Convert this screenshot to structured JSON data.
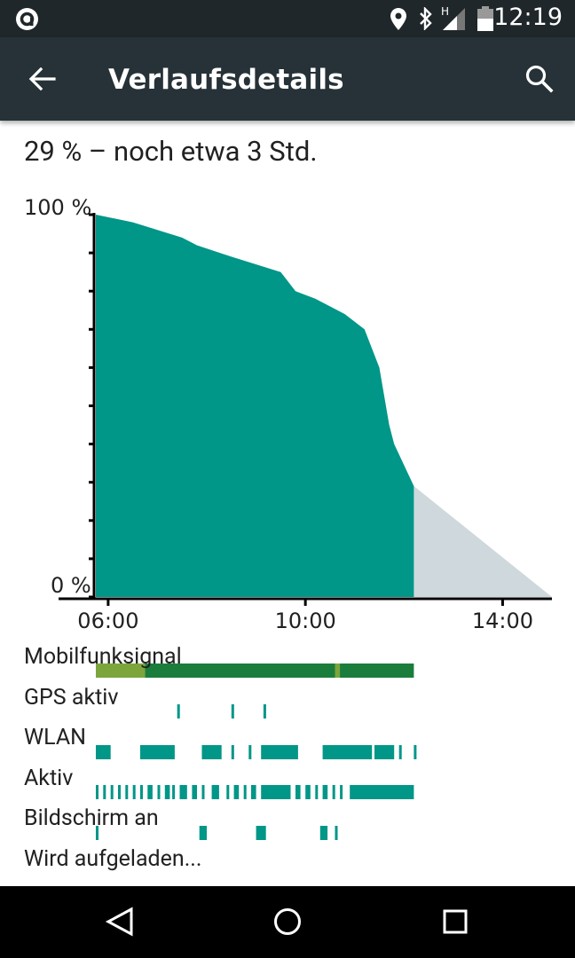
{
  "status_bar": {
    "time": "12:19",
    "icons": [
      "app-notification-icon",
      "location-icon",
      "bluetooth-icon",
      "signal-icon",
      "battery-icon"
    ],
    "network_type": "H"
  },
  "app_bar": {
    "title": "Verlaufsdetails",
    "back_icon": "arrow-left-icon",
    "search_icon": "search-icon"
  },
  "summary": "29 % – noch etwa 3 Std.",
  "chart_data": {
    "type": "area",
    "ylabel_top": "100 %",
    "ylabel_bottom": "0 %",
    "ylim": [
      0,
      100
    ],
    "x_ticks": [
      "06:00",
      "10:00",
      "14:00"
    ],
    "x_tick_hours": [
      6,
      10,
      14
    ],
    "xlim": [
      5.75,
      15.0
    ],
    "series": [
      {
        "x": [
          5.75,
          6.5,
          7.5,
          7.8,
          8.5,
          9.5,
          9.8,
          10.2,
          10.8,
          11.2,
          11.5,
          11.7,
          11.8,
          12.2
        ],
        "y": [
          100,
          98,
          94,
          92,
          89,
          85,
          80,
          78,
          74,
          70,
          60,
          45,
          40,
          29
        ]
      }
    ],
    "projection": {
      "from": [
        12.2,
        29
      ],
      "to": [
        15.0,
        0
      ]
    },
    "colors": {
      "fill": "#009688",
      "projection": "#cfd8dc",
      "axis": "#000000"
    }
  },
  "tracks": [
    {
      "label": "Mobilfunksignal",
      "color": "#1b7d3c",
      "alt_color": "#7ca53c",
      "segments": [
        [
          5.75,
          12.2
        ]
      ],
      "weak_segments": [
        [
          5.75,
          6.75
        ],
        [
          10.6,
          10.7
        ]
      ]
    },
    {
      "label": "GPS aktiv",
      "color": "#009688",
      "segments": [
        [
          7.4,
          7.45
        ],
        [
          8.5,
          8.55
        ],
        [
          9.15,
          9.2
        ]
      ]
    },
    {
      "label": "WLAN",
      "color": "#009688",
      "segments": [
        [
          5.75,
          6.05
        ],
        [
          6.65,
          7.35
        ],
        [
          7.9,
          8.3
        ],
        [
          8.5,
          8.55
        ],
        [
          8.85,
          8.9
        ],
        [
          9.1,
          9.85
        ],
        [
          10.35,
          11.35
        ],
        [
          11.4,
          11.8
        ],
        [
          11.9,
          11.95
        ],
        [
          12.2,
          12.2
        ]
      ]
    },
    {
      "label": "Aktiv",
      "color": "#009688",
      "segments": [
        [
          5.75,
          5.8
        ],
        [
          5.9,
          5.95
        ],
        [
          6.05,
          6.1
        ],
        [
          6.2,
          6.25
        ],
        [
          6.35,
          6.4
        ],
        [
          6.5,
          6.55
        ],
        [
          6.65,
          6.7
        ],
        [
          6.8,
          6.9
        ],
        [
          7.0,
          7.05
        ],
        [
          7.15,
          7.25
        ],
        [
          7.3,
          7.35
        ],
        [
          7.45,
          7.6
        ],
        [
          7.7,
          7.8
        ],
        [
          7.9,
          7.95
        ],
        [
          8.1,
          8.25
        ],
        [
          8.4,
          8.45
        ],
        [
          8.55,
          8.65
        ],
        [
          8.75,
          8.8
        ],
        [
          8.9,
          9.0
        ],
        [
          9.1,
          9.7
        ],
        [
          9.8,
          9.9
        ],
        [
          10.0,
          10.1
        ],
        [
          10.2,
          10.25
        ],
        [
          10.35,
          10.45
        ],
        [
          10.55,
          10.6
        ],
        [
          10.7,
          10.75
        ],
        [
          10.9,
          12.2
        ]
      ]
    },
    {
      "label": "Bildschirm an",
      "color": "#009688",
      "segments": [
        [
          5.75,
          5.8
        ],
        [
          7.85,
          8.0
        ],
        [
          9.0,
          9.2
        ],
        [
          10.3,
          10.45
        ],
        [
          10.6,
          10.65
        ]
      ]
    },
    {
      "label": "Wird aufgeladen...",
      "color": "#009688",
      "segments": []
    }
  ],
  "nav_bar": {
    "buttons": [
      {
        "name": "back-nav-button",
        "icon": "triangle-back-icon"
      },
      {
        "name": "home-nav-button",
        "icon": "circle-home-icon"
      },
      {
        "name": "recents-nav-button",
        "icon": "square-recents-icon"
      }
    ]
  }
}
